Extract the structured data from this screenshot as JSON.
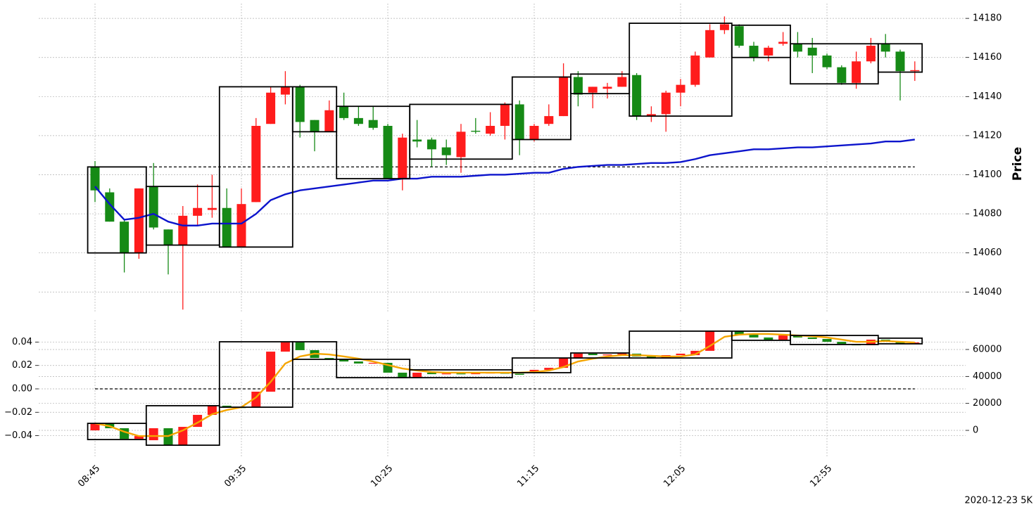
{
  "chart_data": [
    {
      "type": "candlestick",
      "ylabel": "Price",
      "ylim": [
        14029.3,
        14187.6
      ],
      "yticks": [
        14040,
        14060,
        14080,
        14100,
        14120,
        14140,
        14160,
        14180
      ],
      "grid": true,
      "up_color": "#ff1c1c",
      "down_color": "#168a16",
      "candles": {
        "axis": "y",
        "open": [
          14104,
          14091,
          14076,
          14060,
          14094,
          14072,
          14064,
          14079,
          14082,
          14083,
          14063,
          14086,
          14126,
          14141,
          14145,
          14128,
          14122,
          14135,
          14129,
          14128,
          14125,
          14098,
          14118,
          14118,
          14114,
          14109,
          14122.5,
          14121,
          14125,
          14136,
          14118,
          14126,
          14130,
          14150,
          14142,
          14144,
          14145,
          14151,
          14130,
          14131,
          14142,
          14146,
          14160,
          14174,
          14176,
          14166,
          14161,
          14167,
          14167,
          14165,
          14161,
          14155,
          14147,
          14158,
          14167,
          14163,
          14153
        ],
        "high": [
          14107,
          14093,
          14077,
          14093,
          14106,
          14072,
          14084,
          14095,
          14100,
          14093,
          14093,
          14129,
          14145,
          14153,
          14146,
          14128,
          14138,
          14142,
          14135,
          14135,
          14126,
          14121,
          14128,
          14119,
          14118,
          14126,
          14129,
          14132,
          14137,
          14138,
          14126,
          14136,
          14157,
          14153,
          14145,
          14147,
          14153,
          14152,
          14135,
          14143,
          14149,
          14163,
          14177,
          14181,
          14177,
          14168,
          14166,
          14173,
          14173,
          14170,
          14162,
          14156,
          14163,
          14170,
          14172,
          14164,
          14158
        ],
        "low": [
          14086,
          14076,
          14050,
          14057,
          14072,
          14049,
          14031,
          14074,
          14078,
          14063,
          14063,
          14086,
          14126,
          14136,
          14119,
          14112,
          14122,
          14128,
          14125,
          14123,
          14098,
          14092,
          14114,
          14104,
          14105,
          14101,
          14121,
          14120,
          14118,
          14110,
          14117,
          14125,
          14130,
          14135,
          14134,
          14139,
          14145,
          14128,
          14127,
          14122,
          14135,
          14145,
          14160,
          14172,
          14165,
          14158,
          14158,
          14166,
          14160,
          14152,
          14154,
          14146,
          14144,
          14157,
          14160,
          14138,
          14148
        ],
        "close": [
          14092,
          14076,
          14060,
          14093,
          14073,
          14064,
          14079,
          14083,
          14083,
          14063,
          14085,
          14125,
          14142,
          14145,
          14127,
          14122,
          14133,
          14129,
          14126,
          14124,
          14098,
          14119,
          14117,
          14113,
          14110,
          14122,
          14122,
          14125,
          14136,
          14118,
          14125,
          14130,
          14150,
          14141,
          14145,
          14145,
          14150,
          14130,
          14131,
          14142,
          14146,
          14161,
          14174,
          14177,
          14166,
          14160,
          14165,
          14168,
          14163,
          14161,
          14155,
          14147,
          14158,
          14166,
          14163,
          14153,
          14153.5
        ]
      },
      "lines": [
        {
          "axis": "y",
          "color": "#0c14cc",
          "values": [
            14094,
            14085,
            14077,
            14078,
            14080,
            14076,
            14074,
            14074,
            14075,
            14075,
            14075,
            14080,
            14087,
            14090,
            14092,
            14093,
            14094,
            14095,
            14096,
            14097,
            14097,
            14098,
            14098,
            14099,
            14099,
            14099,
            14099.5,
            14100,
            14100,
            14100.5,
            14101,
            14101,
            14103,
            14104,
            14104.5,
            14105,
            14105,
            14105.5,
            14106,
            14106,
            14106.5,
            14108,
            14110,
            14111,
            14112,
            14113,
            14113,
            14113.5,
            14114,
            14114,
            14114.5,
            14115,
            14115.5,
            14116,
            14117,
            14117,
            14118
          ]
        }
      ],
      "hlines": [
        {
          "axis": "y",
          "value": 14104
        }
      ],
      "boxes": [
        {
          "start": 0,
          "end": 3,
          "high": 14104,
          "low": 14060
        },
        {
          "start": 4,
          "end": 8,
          "high": 14094,
          "low": 14064
        },
        {
          "start": 9,
          "end": 13,
          "high": 14145,
          "low": 14063
        },
        {
          "start": 14,
          "end": 16,
          "high": 14145,
          "low": 14122
        },
        {
          "start": 17,
          "end": 21,
          "high": 14135,
          "low": 14098
        },
        {
          "start": 22,
          "end": 28,
          "high": 14136,
          "low": 14108
        },
        {
          "start": 29,
          "end": 32,
          "high": 14150,
          "low": 14118
        },
        {
          "start": 33,
          "end": 36,
          "high": 14151.5,
          "low": 14141.5
        },
        {
          "start": 37,
          "end": 43,
          "high": 14177.5,
          "low": 14130
        },
        {
          "start": 44,
          "end": 47,
          "high": 14176.5,
          "low": 14160
        },
        {
          "start": 48,
          "end": 53,
          "high": 14167,
          "low": 14146.5
        },
        {
          "start": 54,
          "end": 56,
          "high": 14167,
          "low": 14152.5
        }
      ]
    },
    {
      "type": "candlestick",
      "categories": [
        "08:45",
        null,
        null,
        null,
        null,
        null,
        null,
        null,
        null,
        null,
        "09:35",
        null,
        null,
        null,
        null,
        null,
        null,
        null,
        null,
        null,
        "10:25",
        null,
        null,
        null,
        null,
        null,
        null,
        null,
        null,
        null,
        "11:15",
        null,
        null,
        null,
        null,
        null,
        null,
        null,
        null,
        null,
        "12:05",
        null,
        null,
        null,
        null,
        null,
        null,
        null,
        null,
        null,
        "12:55",
        null,
        null,
        null,
        null,
        null,
        null
      ],
      "ylim": [
        -0.0583,
        0.0589
      ],
      "yticks": [
        {
          "value": -0.04,
          "label": "−0.04"
        },
        {
          "value": -0.02,
          "label": "−0.02"
        },
        {
          "value": 0,
          "label": "0.00"
        },
        0.02,
        0.04
      ],
      "y2lim": [
        -19800,
        81900
      ],
      "y2ticks": [
        0,
        20000,
        40000,
        60000
      ],
      "grid": true,
      "up_color": "#ff1c1c",
      "down_color": "#168a16",
      "candles": {
        "axis": "y2",
        "open": [
          0,
          5200,
          1600,
          -6300,
          -7300,
          1600,
          -11000,
          2600,
          11500,
          18300,
          17200,
          17200,
          28700,
          58400,
          65200,
          59500,
          53700,
          52700,
          51100,
          49600,
          50100,
          42800,
          39100,
          42800,
          41700,
          42200,
          41900,
          42300,
          42800,
          42000,
          43800,
          44900,
          46400,
          53700,
          56900,
          55800,
          56300,
          56900,
          54800,
          53700,
          55800,
          55800,
          59000,
          73600,
          73600,
          71000,
          68900,
          66800,
          70400,
          68900,
          67800,
          65700,
          63700,
          63200,
          67300,
          65700,
          64200
        ],
        "close": [
          5200,
          1600,
          -6300,
          -4200,
          1600,
          -11000,
          2600,
          11500,
          18300,
          17200,
          17000,
          28700,
          58400,
          65200,
          59500,
          53700,
          52700,
          51100,
          49600,
          50100,
          42800,
          39100,
          42800,
          41700,
          42200,
          41900,
          42300,
          42800,
          42000,
          41200,
          44900,
          46400,
          53700,
          56900,
          55800,
          56300,
          56900,
          54800,
          53700,
          55800,
          56900,
          59000,
          73600,
          74100,
          71000,
          68900,
          66800,
          70400,
          68900,
          67800,
          65700,
          63700,
          63200,
          67300,
          65700,
          64200,
          65200
        ]
      },
      "lines": [
        {
          "axis": "y2",
          "color": "#f5a500",
          "values": [
            5200,
            3100,
            -1000,
            -4200,
            -4200,
            -4200,
            0,
            5700,
            12000,
            15100,
            17200,
            24500,
            36000,
            49600,
            54800,
            56900,
            56300,
            54800,
            53200,
            51100,
            48500,
            45900,
            44400,
            43300,
            42800,
            42800,
            42800,
            42800,
            42800,
            42800,
            43300,
            44400,
            47000,
            51100,
            53200,
            54800,
            55800,
            55800,
            55300,
            54800,
            54800,
            56300,
            62600,
            69400,
            71000,
            71500,
            71500,
            71000,
            70400,
            69900,
            68900,
            67300,
            65700,
            65700,
            66300,
            65700,
            65200
          ]
        }
      ],
      "hlines": [
        {
          "axis": "y",
          "value": 0
        }
      ],
      "boxes": [
        {
          "start": 0,
          "end": 3,
          "high": 5200,
          "low": -6800
        },
        {
          "start": 4,
          "end": 8,
          "high": 18300,
          "low": -11000
        },
        {
          "start": 9,
          "end": 13,
          "high": 65700,
          "low": 17200
        },
        {
          "start": 14,
          "end": 16,
          "high": 65700,
          "low": 52700
        },
        {
          "start": 17,
          "end": 21,
          "high": 52700,
          "low": 39100
        },
        {
          "start": 22,
          "end": 28,
          "high": 44900,
          "low": 39100
        },
        {
          "start": 29,
          "end": 32,
          "high": 53700,
          "low": 42800
        },
        {
          "start": 33,
          "end": 36,
          "high": 57400,
          "low": 53700
        },
        {
          "start": 37,
          "end": 43,
          "high": 73600,
          "low": 53700
        },
        {
          "start": 44,
          "end": 47,
          "high": 73600,
          "low": 66800
        },
        {
          "start": 48,
          "end": 53,
          "high": 70400,
          "low": 63700
        },
        {
          "start": 54,
          "end": 56,
          "high": 68400,
          "low": 64200
        }
      ],
      "caption": "2020-12-23 5K"
    }
  ]
}
